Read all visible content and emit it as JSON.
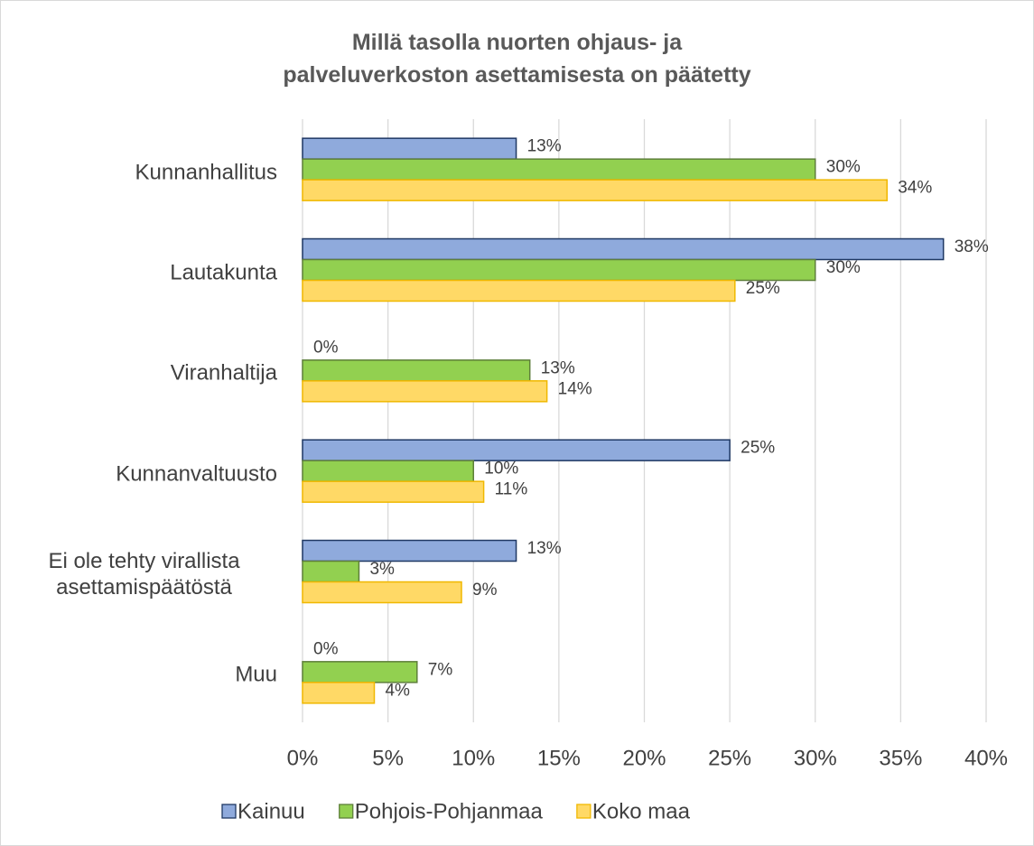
{
  "chart_data": {
    "type": "barh",
    "title": "Millä tasolla nuorten ohjaus- ja palveluverkoston asettamisesta on päätetty",
    "categories": [
      "Kunnanhallitus",
      "Lautakunta",
      "Viranhaltija",
      "Kunnanvaltuusto",
      "Ei ole tehty virallista asettamispäätöstä",
      "Muu"
    ],
    "series": [
      {
        "name": "Kainuu",
        "color": "#8faadc",
        "edgecolor": "#1f3864",
        "values": [
          12.5,
          37.5,
          0,
          25,
          12.5,
          0
        ],
        "value_labels": [
          "13%",
          "38%",
          "0%",
          "25%",
          "13%",
          "0%"
        ]
      },
      {
        "name": "Pohjois-Pohjanmaa",
        "color": "#92d050",
        "edgecolor": "#5e7f3a",
        "values": [
          30,
          30,
          13.3,
          10,
          3.3,
          6.7
        ],
        "value_labels": [
          "30%",
          "30%",
          "13%",
          "10%",
          "3%",
          "7%"
        ]
      },
      {
        "name": "Koko maa",
        "color": "#ffd966",
        "edgecolor": "#f0b800",
        "values": [
          34.2,
          25.3,
          14.3,
          10.6,
          9.3,
          4.2
        ],
        "value_labels": [
          "34%",
          "25%",
          "14%",
          "11%",
          "9%",
          "4%"
        ]
      }
    ],
    "xlim": [
      0,
      40
    ],
    "xticks": [
      {
        "value": 0,
        "label": "0%"
      },
      {
        "value": 5,
        "label": "5%"
      },
      {
        "value": 10,
        "label": "10%"
      },
      {
        "value": 15,
        "label": "15%"
      },
      {
        "value": 20,
        "label": "20%"
      },
      {
        "value": 25,
        "label": "25%"
      },
      {
        "value": 30,
        "label": "30%"
      },
      {
        "value": 35,
        "label": "35%"
      },
      {
        "value": 40,
        "label": "40%"
      }
    ],
    "grid": true,
    "legend": "bottom"
  }
}
